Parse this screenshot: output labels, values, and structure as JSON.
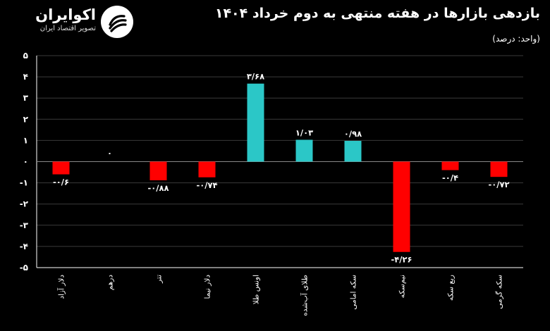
{
  "header": {
    "brand_name": "اکوایران",
    "brand_tagline": "تصویر اقتصاد ایران",
    "logo_icon": "ecoiran-logo-icon",
    "title": "بازدهی بازارها در هفته منتهی به دوم خرداد ۱۴۰۴",
    "unit": "(واحد: درصد)"
  },
  "colors": {
    "background": "#000000",
    "positive": "#2bc7c7",
    "negative": "#ff0000",
    "grid": "#3a3a3a",
    "axis": "#ffffff"
  },
  "chart_data": {
    "type": "bar",
    "title": "بازدهی بازارها در هفته منتهی به دوم خرداد ۱۴۰۴",
    "unit": "(واحد: درصد)",
    "categories": [
      "دلار آزاد",
      "درهم",
      "تتر",
      "دلار نیما",
      "اونس طلا",
      "طلای آب‌شده",
      "سکه امامی",
      "نیم‌سکه",
      "ربع سکه",
      "سکه گرمی"
    ],
    "values": [
      -0.6,
      0,
      -0.88,
      -0.74,
      3.68,
      1.03,
      0.98,
      -4.26,
      -0.4,
      -0.72
    ],
    "data_labels": [
      "-۰/۶",
      "۰",
      "-۰/۸۸",
      "-۰/۷۴",
      "۳/۶۸",
      "۱/۰۳",
      "۰/۹۸",
      "-۴/۲۶",
      "-۰/۴",
      "-۰/۷۲"
    ],
    "ylim": [
      -5,
      5
    ],
    "yticks": [
      5,
      4,
      3,
      2,
      1,
      0,
      -1,
      -2,
      -3,
      -4,
      -5
    ],
    "ytick_labels": [
      "۵",
      "۴",
      "۳",
      "۲",
      "۱",
      "۰",
      "-۱",
      "-۲",
      "-۳",
      "-۴",
      "-۵"
    ],
    "grid": true,
    "legend": "none"
  }
}
